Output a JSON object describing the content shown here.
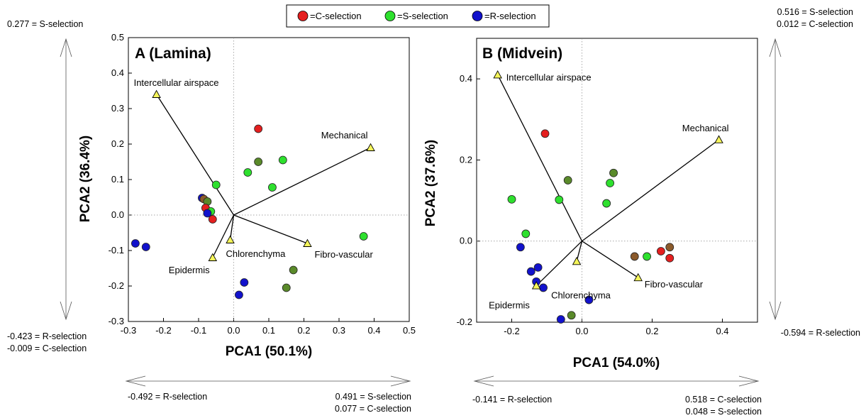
{
  "legend": {
    "items": [
      {
        "label": "=C-selection",
        "color": "#e41f1f"
      },
      {
        "label": "=S-selection",
        "color": "#2ee02e"
      },
      {
        "label": "=R-selection",
        "color": "#1212cc"
      }
    ]
  },
  "colors": {
    "vector_marker": "#f5f55a",
    "mixed_cs": "#8b5a2b",
    "mixed_sg": "#5a8a2a"
  },
  "annotations": {
    "left_top": "0.277 = S-selection",
    "left_bottom_1": "-0.423 = R-selection",
    "left_bottom_2": "-0.009 = C-selection",
    "bottomA_left": "-0.492 = R-selection",
    "bottomA_right_1": "0.491 = S-selection",
    "bottomA_right_2": "0.077 = C-selection",
    "right_top_1": "0.516 = S-selection",
    "right_top_2": "0.012 = C-selection",
    "right_bottom": "-0.594 = R-selection",
    "bottomB_left": "-0.141 = R-selection",
    "bottomB_right_1": "0.518 = C-selection",
    "bottomB_right_2": "0.048 = S-selection"
  },
  "chart_data": [
    {
      "type": "scatter",
      "title": "A (Lamina)",
      "xlabel": "PCA1 (50.1%)",
      "ylabel": "PCA2 (36.4%)",
      "xlim": [
        -0.3,
        0.5
      ],
      "ylim": [
        -0.3,
        0.5
      ],
      "xticks": [
        "-0.3",
        "-0.2",
        "-0.1",
        "0.0",
        "0.1",
        "0.2",
        "0.3",
        "0.4",
        "0.5"
      ],
      "yticks": [
        "-0.3",
        "-0.2",
        "-0.1",
        "0.0",
        "0.1",
        "0.2",
        "0.3",
        "0.4",
        "0.5"
      ],
      "vectors": [
        {
          "label": "Intercellular airspace",
          "x": -0.22,
          "y": 0.34
        },
        {
          "label": "Mechanical",
          "x": 0.39,
          "y": 0.19
        },
        {
          "label": "Fibro-vascular",
          "x": 0.21,
          "y": -0.08
        },
        {
          "label": "Chlorenchyma",
          "x": -0.01,
          "y": -0.07
        },
        {
          "label": "Epidermis",
          "x": -0.06,
          "y": -0.12
        }
      ],
      "points": [
        {
          "x": 0.07,
          "y": 0.243,
          "group": "C"
        },
        {
          "x": 0.07,
          "y": 0.15,
          "group": "SG"
        },
        {
          "x": 0.14,
          "y": 0.155,
          "group": "S"
        },
        {
          "x": 0.04,
          "y": 0.12,
          "group": "S"
        },
        {
          "x": 0.11,
          "y": 0.078,
          "group": "S"
        },
        {
          "x": -0.05,
          "y": 0.085,
          "group": "S"
        },
        {
          "x": -0.09,
          "y": 0.048,
          "group": "R"
        },
        {
          "x": -0.085,
          "y": 0.045,
          "group": "CS"
        },
        {
          "x": -0.075,
          "y": 0.038,
          "group": "SG"
        },
        {
          "x": -0.08,
          "y": 0.02,
          "group": "C"
        },
        {
          "x": -0.065,
          "y": 0.01,
          "group": "S"
        },
        {
          "x": -0.075,
          "y": 0.005,
          "group": "R"
        },
        {
          "x": -0.06,
          "y": -0.012,
          "group": "C"
        },
        {
          "x": 0.37,
          "y": -0.06,
          "group": "S"
        },
        {
          "x": -0.28,
          "y": -0.08,
          "group": "R"
        },
        {
          "x": -0.25,
          "y": -0.09,
          "group": "R"
        },
        {
          "x": 0.17,
          "y": -0.155,
          "group": "SG"
        },
        {
          "x": 0.15,
          "y": -0.205,
          "group": "SG"
        },
        {
          "x": 0.03,
          "y": -0.19,
          "group": "R"
        },
        {
          "x": 0.015,
          "y": -0.225,
          "group": "R"
        }
      ]
    },
    {
      "type": "scatter",
      "title": "B (Midvein)",
      "xlabel": "PCA1 (54.0%)",
      "ylabel": "PCA2 (37.6%)",
      "xlim": [
        -0.3,
        0.5
      ],
      "ylim": [
        -0.2,
        0.5
      ],
      "xticks": [
        "-0.2",
        "0.0",
        "0.2",
        "0.4"
      ],
      "yticks": [
        "-0.2",
        "0.0",
        "0.2",
        "0.4"
      ],
      "vectors": [
        {
          "label": "Intercellular airspace",
          "x": -0.24,
          "y": 0.41
        },
        {
          "label": "Mechanical",
          "x": 0.39,
          "y": 0.25
        },
        {
          "label": "Fibro-vascular",
          "x": 0.16,
          "y": -0.09
        },
        {
          "label": "Chlorenchyma",
          "x": -0.015,
          "y": -0.05
        },
        {
          "label": "Epidermis",
          "x": -0.13,
          "y": -0.11
        }
      ],
      "points": [
        {
          "x": -0.105,
          "y": 0.265,
          "group": "C"
        },
        {
          "x": 0.09,
          "y": 0.168,
          "group": "SG"
        },
        {
          "x": -0.04,
          "y": 0.15,
          "group": "SG"
        },
        {
          "x": 0.08,
          "y": 0.143,
          "group": "S"
        },
        {
          "x": -0.2,
          "y": 0.103,
          "group": "S"
        },
        {
          "x": -0.065,
          "y": 0.102,
          "group": "S"
        },
        {
          "x": 0.07,
          "y": 0.093,
          "group": "S"
        },
        {
          "x": -0.16,
          "y": 0.018,
          "group": "S"
        },
        {
          "x": -0.175,
          "y": -0.015,
          "group": "R"
        },
        {
          "x": 0.15,
          "y": -0.038,
          "group": "CS"
        },
        {
          "x": 0.185,
          "y": -0.038,
          "group": "S"
        },
        {
          "x": 0.225,
          "y": -0.025,
          "group": "C"
        },
        {
          "x": 0.25,
          "y": -0.015,
          "group": "CS"
        },
        {
          "x": 0.25,
          "y": -0.042,
          "group": "C"
        },
        {
          "x": -0.125,
          "y": -0.065,
          "group": "R"
        },
        {
          "x": -0.145,
          "y": -0.075,
          "group": "R"
        },
        {
          "x": -0.13,
          "y": -0.1,
          "group": "R"
        },
        {
          "x": -0.11,
          "y": -0.115,
          "group": "R"
        },
        {
          "x": 0.02,
          "y": -0.145,
          "group": "R"
        },
        {
          "x": -0.03,
          "y": -0.183,
          "group": "SG"
        },
        {
          "x": -0.06,
          "y": -0.193,
          "group": "R"
        }
      ]
    }
  ]
}
